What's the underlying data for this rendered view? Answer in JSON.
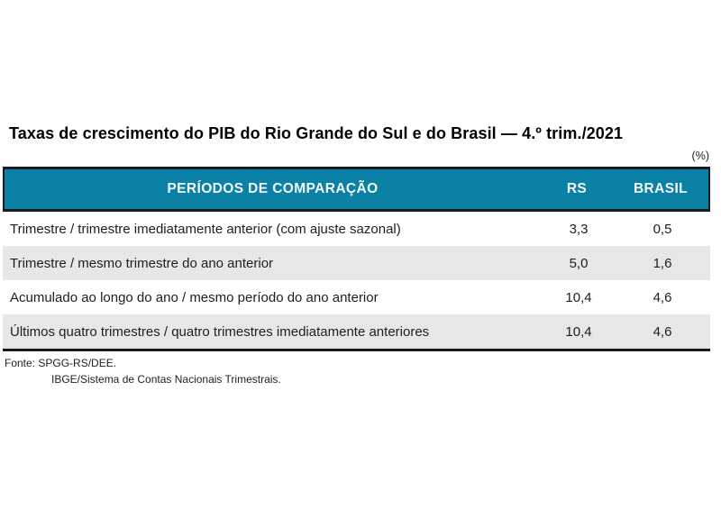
{
  "page": {
    "title": "Taxas de crescimento do PIB do Rio Grande do Sul e do Brasil — 4.º trim./2021",
    "unit_label": "(%)"
  },
  "table": {
    "headers": {
      "periods": "PERÍODOS DE COMPARAÇÃO",
      "rs": "RS",
      "brasil": "BRASIL"
    },
    "rows": [
      {
        "label": "Trimestre / trimestre imediatamente anterior (com ajuste sazonal)",
        "rs": "3,3",
        "brasil": "0,5"
      },
      {
        "label": "Trimestre / mesmo trimestre do ano anterior",
        "rs": "5,0",
        "brasil": "1,6"
      },
      {
        "label": "Acumulado ao longo do ano / mesmo período do ano anterior",
        "rs": "10,4",
        "brasil": "4,6"
      },
      {
        "label": "Últimos quatro trimestres / quatro trimestres imediatamente anteriores",
        "rs": "10,4",
        "brasil": "4,6"
      }
    ]
  },
  "footer": {
    "source_line1": "Fonte: SPGG-RS/DEE.",
    "source_line2": "IBGE/Sistema de Contas Nacionais Trimestrais."
  },
  "colors": {
    "header_bg": "#0a81a5",
    "border_dark": "#171b24",
    "row_alt_bg": "#e7e7e7",
    "header_text": "#f4fafc"
  },
  "chart_data": {
    "type": "table",
    "title": "Taxas de crescimento do PIB do Rio Grande do Sul e do Brasil — 4.º trim./2021",
    "unit": "%",
    "columns": [
      "PERÍODOS DE COMPARAÇÃO",
      "RS",
      "BRASIL"
    ],
    "rows": [
      [
        "Trimestre / trimestre imediatamente anterior (com ajuste sazonal)",
        3.3,
        0.5
      ],
      [
        "Trimestre / mesmo trimestre do ano anterior",
        5.0,
        1.6
      ],
      [
        "Acumulado ao longo do ano / mesmo período do ano anterior",
        10.4,
        4.6
      ],
      [
        "Últimos quatro trimestres / quatro trimestres imediatamente anteriores",
        10.4,
        4.6
      ]
    ]
  }
}
